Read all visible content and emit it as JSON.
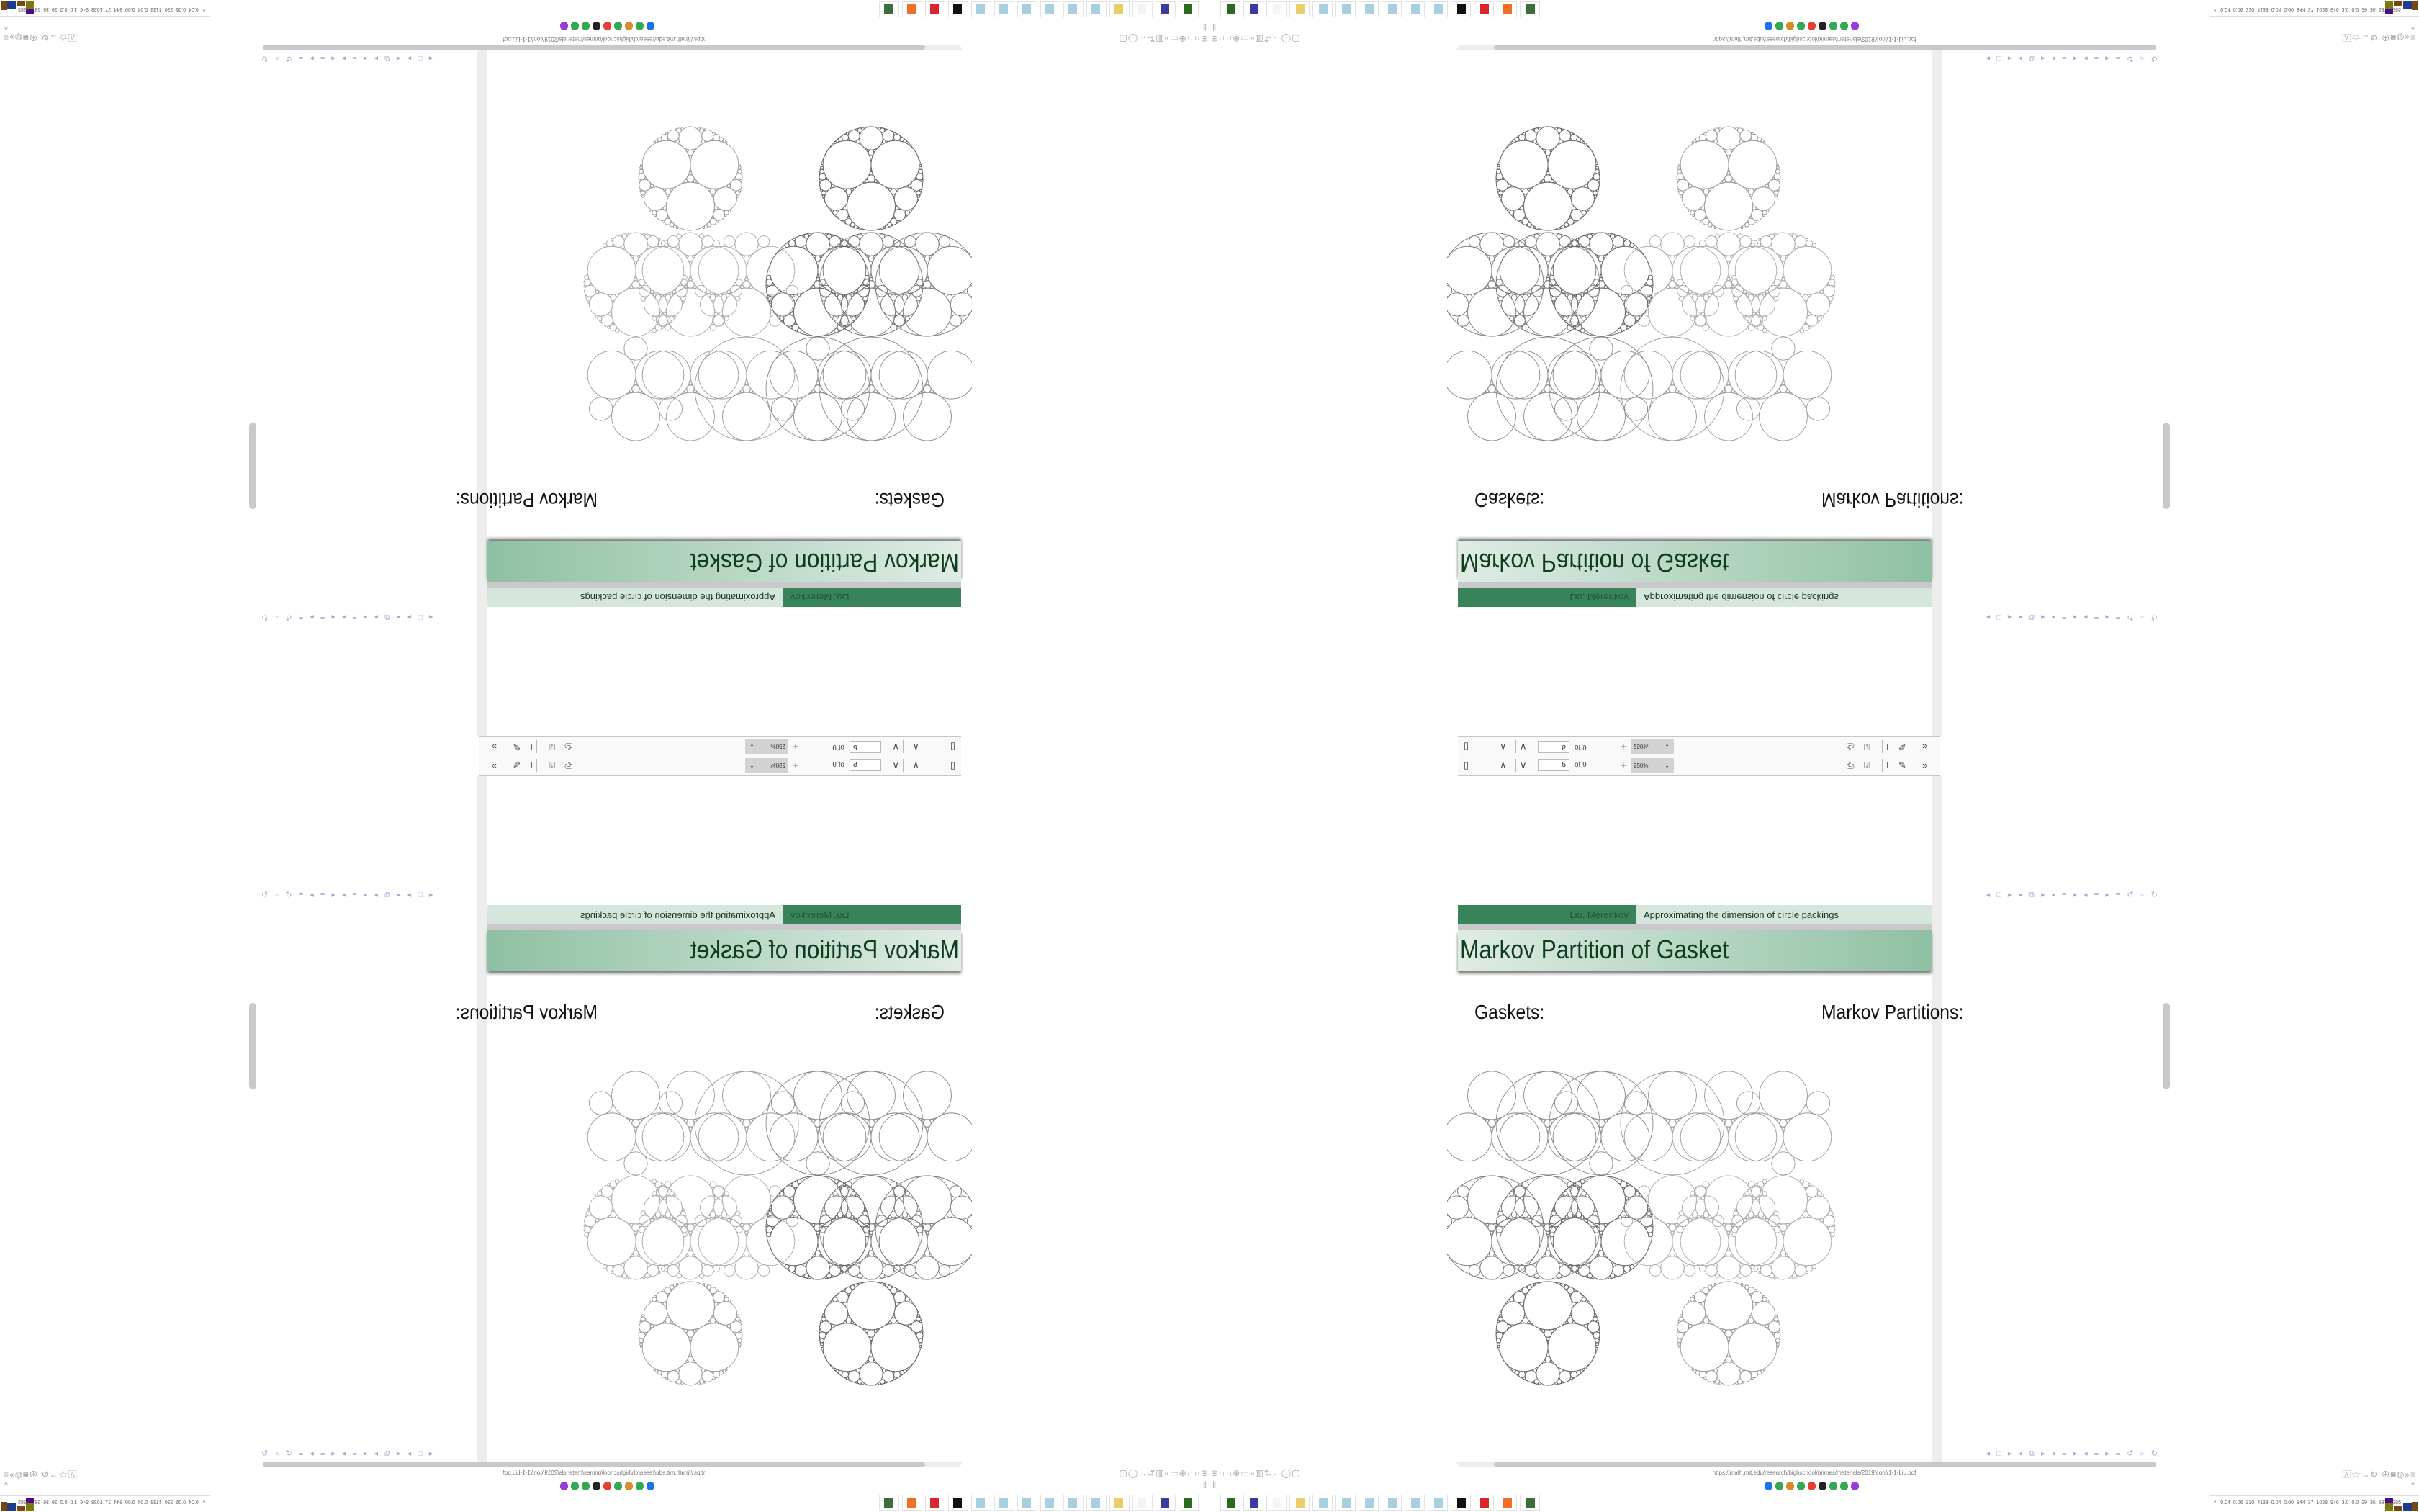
{
  "pdf_viewer": {
    "current_page": "5",
    "page_total": "of 9",
    "zoom": "250%",
    "icons": [
      "sidebar-toggle-icon",
      "page-up-icon",
      "page-down-icon",
      "zoom-out-icon",
      "zoom-in-icon",
      "print-icon",
      "download-icon",
      "text-select-icon",
      "draw-icon",
      "more-tools-icon"
    ]
  },
  "slide": {
    "author": "Liu, Merenkov",
    "talk_title": "Approximating the dimension of circle packings",
    "frame_title": "Markov Partition of Gasket",
    "left_column_label": "Gaskets:",
    "right_column_label": "Markov Partitions:",
    "nav_symbols": "◂ □ ▸ ◂ ⧉ ▸ ◂ ≡ ▸ ◂ ≡ ▸   ≡   ↺ ⌕ ↻",
    "colors": {
      "header_dark": "#38835a",
      "header_light": "#d5e7dc",
      "title_gradient_start": "#dfece4",
      "title_gradient_end": "#8fc0a3",
      "nav": "#a9a9d6"
    }
  },
  "browser": {
    "url": "https://math.mit.edu/research/highschool/primes/materials/2019/conf/1-1-Liu.pdf",
    "left_icons": "⊕∩∩⊕▭»▥⇅←◯▢",
    "right_icons": "🄰☆→↻ ⊕◙◍»≡",
    "bookmarks_toggle": "‖",
    "bookmarks_collapse": "^",
    "favicons": [
      "#1a73e8",
      "#34a853",
      "#d98c2b",
      "#34a853",
      "#e34133",
      "#222222",
      "#34a853",
      "#34a853",
      "#9c3ad6"
    ]
  },
  "taskbar": {
    "apps": [
      {
        "icon": "launcher-icon",
        "color": "#2c6b1e"
      },
      {
        "icon": "floppy-64-icon",
        "color": "#3a3aa0"
      },
      {
        "icon": "blank-icon",
        "color": "#f4f4f4"
      },
      {
        "icon": "folder-icon",
        "color": "#e8cf6a"
      },
      {
        "icon": "notepad-icon",
        "color": "#a9cfe0"
      },
      {
        "icon": "notepad-icon",
        "color": "#a9cfe0"
      },
      {
        "icon": "notepad-icon",
        "color": "#a9cfe0"
      },
      {
        "icon": "notepad-icon",
        "color": "#a9cfe0"
      },
      {
        "icon": "notepad-icon",
        "color": "#a9cfe0"
      },
      {
        "icon": "notepad-icon",
        "color": "#a9cfe0"
      },
      {
        "icon": "terminal-icon",
        "color": "#111111"
      },
      {
        "icon": "settings-icon",
        "color": "#d8262c"
      },
      {
        "icon": "firefox-icon",
        "color": "#f0702a"
      },
      {
        "icon": "system-monitor-icon",
        "color": "#3d6d3d"
      }
    ],
    "tray_chevron": "^",
    "tray_stats": [
      "0.04",
      "0.06",
      "330",
      "4133",
      "0.04",
      "0.00",
      "844",
      "37",
      "1028",
      "946",
      "3.0",
      "0.0",
      "39",
      "36",
      "58798385"
    ]
  }
}
